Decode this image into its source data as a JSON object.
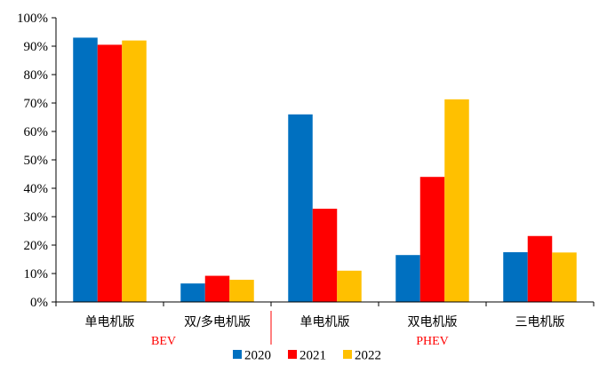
{
  "chart_data": {
    "type": "bar",
    "categories": [
      "单电机版",
      "双/多电机版",
      "单电机版",
      "双电机版",
      "三电机版"
    ],
    "groups": [
      {
        "label": "BEV",
        "categories": [
          0,
          1
        ]
      },
      {
        "label": "PHEV",
        "categories": [
          2,
          3,
          4
        ]
      }
    ],
    "series": [
      {
        "name": "2020",
        "color": "#0070C0",
        "values": [
          93,
          6.5,
          66,
          16.5,
          17.5
        ]
      },
      {
        "name": "2021",
        "color": "#FF0000",
        "values": [
          90.5,
          9.2,
          32.8,
          44,
          23.2
        ]
      },
      {
        "name": "2022",
        "color": "#FFC000",
        "values": [
          92,
          7.8,
          11,
          71.3,
          17.4
        ]
      }
    ],
    "ylim": [
      0,
      100
    ],
    "yticks": [
      "0%",
      "10%",
      "20%",
      "30%",
      "40%",
      "50%",
      "60%",
      "70%",
      "80%",
      "90%",
      "100%"
    ],
    "group_label_color": "#FF0000",
    "legend_position": "bottom",
    "grid": false
  }
}
